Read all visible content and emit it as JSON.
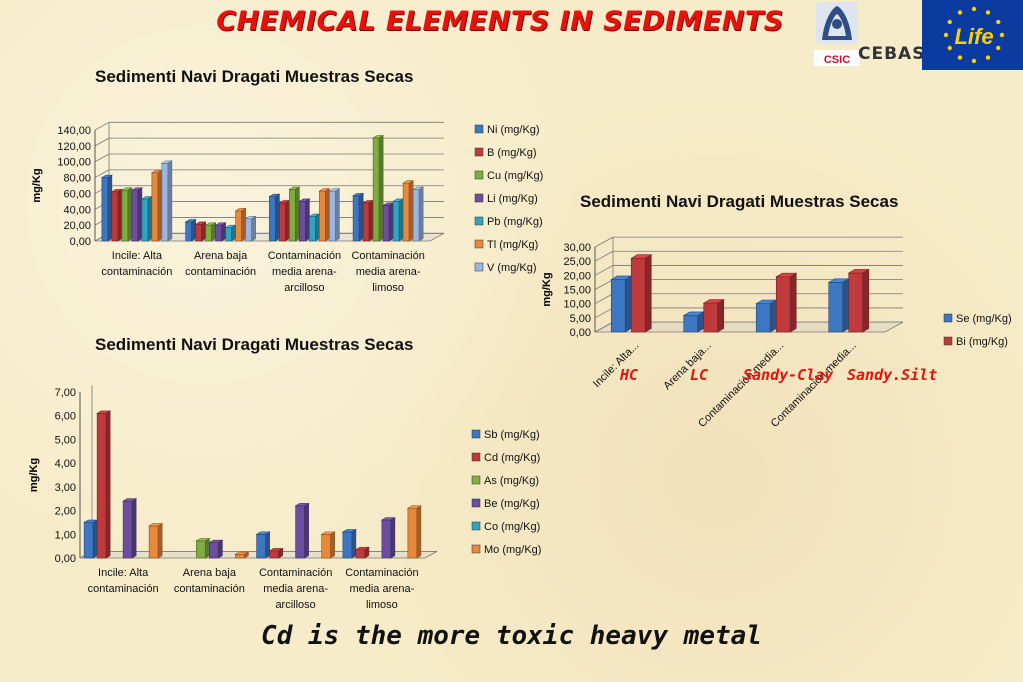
{
  "slide": {
    "title": "CHEMICAL ELEMENTS IN SEDIMENTS",
    "footer": "Cd is the more toxic heavy metal",
    "logos": {
      "csic": "CSIC",
      "cebas": "CEBAS",
      "life": "Life"
    }
  },
  "colors": {
    "title": "#e8120c",
    "series": [
      "#3d76c2",
      "#c0393c",
      "#7fad3f",
      "#6b4ea0",
      "#31a5c0",
      "#e8883a",
      "#9bb6e3"
    ],
    "eu_blue": "#0b3aa0",
    "eu_star": "#f7d200"
  },
  "chart_data": [
    {
      "type": "bar",
      "title": "Sedimenti Navi Dragati Muestras Secas",
      "ylabel": "mg/Kg",
      "ylim": [
        0,
        140
      ],
      "yticks": [
        "0,00",
        "20,00",
        "40,00",
        "60,00",
        "80,00",
        "100,00",
        "120,00",
        "140,00"
      ],
      "categories": [
        [
          "Incile: Alta",
          "contaminación"
        ],
        [
          "Arena baja",
          "contaminación"
        ],
        [
          "Contaminación",
          "media arena-",
          "arcilloso"
        ],
        [
          "Contaminación",
          "media arena-",
          "limoso"
        ]
      ],
      "series": [
        {
          "name": "Ni (mg/Kg)",
          "values": [
            80,
            24,
            56,
            57
          ]
        },
        {
          "name": "B (mg/Kg)",
          "values": [
            62,
            21,
            48,
            48
          ]
        },
        {
          "name": "Cu (mg/Kg)",
          "values": [
            64,
            20,
            65,
            130
          ]
        },
        {
          "name": "Li (mg/Kg)",
          "values": [
            64,
            20,
            50,
            45
          ]
        },
        {
          "name": "Pb (mg/Kg)",
          "values": [
            53,
            17,
            31,
            50
          ]
        },
        {
          "name": "Tl (mg/Kg)",
          "values": [
            86,
            38,
            63,
            73
          ]
        },
        {
          "name": "V (mg/Kg)",
          "values": [
            98,
            28,
            63,
            65
          ]
        }
      ],
      "grid": true,
      "legend": "right"
    },
    {
      "type": "bar",
      "title": "Sedimenti Navi Dragati Muestras Secas",
      "ylabel": "mg/Kg",
      "ylim": [
        0,
        7
      ],
      "yticks": [
        "0,00",
        "1,00",
        "2,00",
        "3,00",
        "4,00",
        "5,00",
        "6,00",
        "7,00"
      ],
      "categories": [
        [
          "Incile: Alta",
          "contaminación"
        ],
        [
          "Arena baja",
          "contaminación"
        ],
        [
          "Contaminación",
          "media arena-",
          "arcilloso"
        ],
        [
          "Contaminación",
          "media arena-",
          "limoso"
        ]
      ],
      "series": [
        {
          "name": "Sb (mg/Kg)",
          "values": [
            1.5,
            0.02,
            1.0,
            1.1
          ]
        },
        {
          "name": "Cd (mg/Kg)",
          "values": [
            6.1,
            0.0,
            0.3,
            0.35
          ]
        },
        {
          "name": "As (mg/Kg)",
          "values": [
            0.0,
            0.72,
            0.0,
            0.0
          ]
        },
        {
          "name": "Be (mg/Kg)",
          "values": [
            2.4,
            0.65,
            2.2,
            1.6
          ]
        },
        {
          "name": "Co (mg/Kg)",
          "values": [
            0.0,
            0.0,
            0.0,
            0.0
          ]
        },
        {
          "name": "Mo (mg/Kg)",
          "values": [
            1.35,
            0.15,
            1.0,
            2.1
          ]
        }
      ],
      "grid": false,
      "legend": "right"
    },
    {
      "type": "bar",
      "title": "Sedimenti Navi Dragati Muestras Secas",
      "ylabel": "mg/Kg",
      "ylim": [
        0,
        30
      ],
      "yticks": [
        "0,00",
        "5,00",
        "10,00",
        "15,00",
        "20,00",
        "25,00",
        "30,00"
      ],
      "categories": [
        "Incile: Alta...",
        "Arena baja...",
        "Contaminación media...",
        "Contaminación media..."
      ],
      "series": [
        {
          "name": "Se (mg/Kg)",
          "values": [
            18.5,
            5.8,
            10,
            17.5
          ]
        },
        {
          "name": "Bi (mg/Kg)",
          "values": [
            26,
            10.2,
            19.5,
            20.8
          ]
        }
      ],
      "annotations": [
        "HC",
        "LC",
        "Sandy-Clay",
        "Sandy.Silt"
      ],
      "grid": true,
      "legend": "right"
    }
  ]
}
